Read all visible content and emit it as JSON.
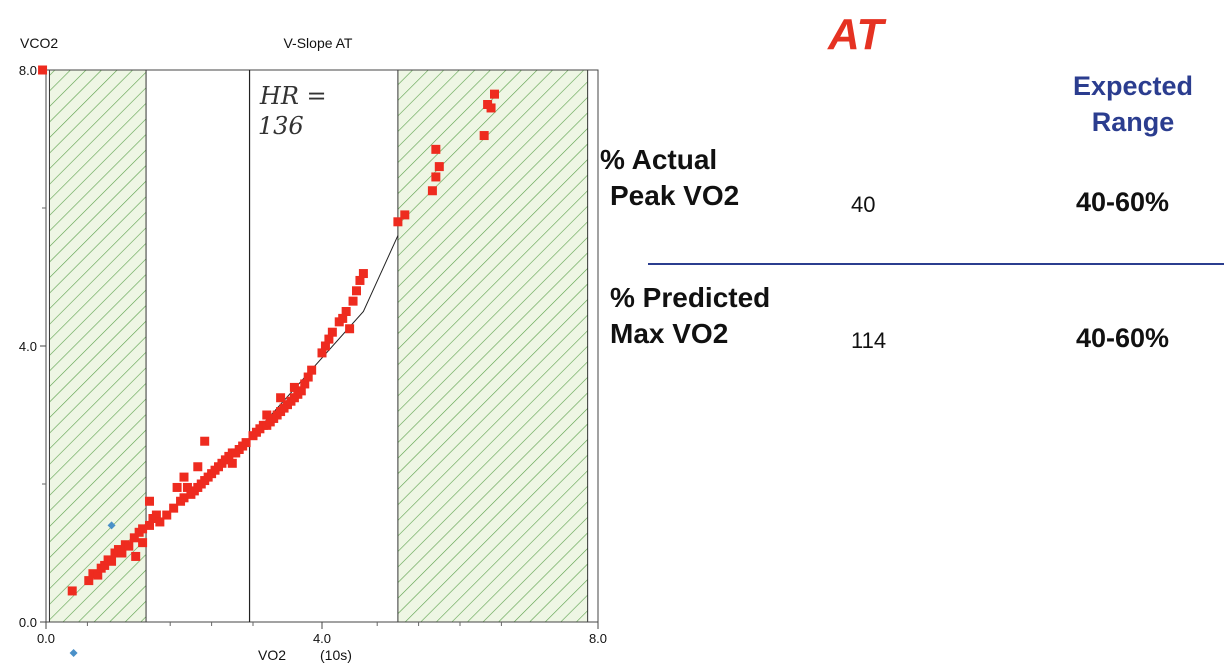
{
  "chart_data": {
    "type": "scatter",
    "title": "V-Slope AT",
    "ylabel": "VCO2",
    "xlabel": "VO2",
    "xlabel_suffix": "(10s)",
    "xlim": [
      0,
      8
    ],
    "ylim": [
      0,
      8
    ],
    "x_ticks": [
      {
        "value": 0,
        "label": "0.0"
      },
      {
        "value": 4,
        "label": "4.0"
      },
      {
        "value": 8,
        "label": "8.0"
      }
    ],
    "y_ticks": [
      {
        "value": 0,
        "label": "0.0"
      },
      {
        "value": 4,
        "label": "4.0"
      },
      {
        "value": 8,
        "label": "8.0"
      }
    ],
    "x_minor_ticks": [
      0.6,
      1.8,
      2.4,
      3.0,
      4.8,
      5.4,
      6.0,
      6.6
    ],
    "y_minor_ticks": [
      2.0,
      6.0
    ],
    "shaded_regions": [
      {
        "x_start": 0.05,
        "x_end": 1.45
      },
      {
        "x_start": 5.1,
        "x_end": 7.85
      }
    ],
    "at_line_x": 2.95,
    "fit_line": [
      {
        "x": 2.95,
        "y": 2.65
      },
      {
        "x": 4.6,
        "y": 4.5
      },
      {
        "x": 5.1,
        "y": 5.6
      }
    ],
    "annotation": {
      "line1": "HR =",
      "line2": "136",
      "x": 3.1,
      "y": 7.1
    },
    "series": [
      {
        "name": "VCO2",
        "color": "#ee2b1f",
        "points": [
          [
            0.38,
            0.45
          ],
          [
            0.62,
            0.6
          ],
          [
            0.68,
            0.7
          ],
          [
            0.75,
            0.68
          ],
          [
            0.8,
            0.78
          ],
          [
            0.85,
            0.82
          ],
          [
            0.9,
            0.9
          ],
          [
            0.95,
            0.88
          ],
          [
            1.0,
            1.0
          ],
          [
            1.05,
            1.05
          ],
          [
            1.1,
            1.0
          ],
          [
            1.15,
            1.12
          ],
          [
            1.2,
            1.1
          ],
          [
            1.28,
            1.22
          ],
          [
            1.35,
            1.3
          ],
          [
            1.4,
            1.35
          ],
          [
            1.5,
            1.4
          ],
          [
            1.55,
            1.5
          ],
          [
            1.6,
            1.55
          ],
          [
            1.5,
            1.75
          ],
          [
            1.65,
            1.45
          ],
          [
            1.3,
            0.95
          ],
          [
            1.4,
            1.15
          ],
          [
            1.75,
            1.55
          ],
          [
            1.85,
            1.65
          ],
          [
            1.95,
            1.75
          ],
          [
            2.0,
            1.8
          ],
          [
            2.05,
            1.95
          ],
          [
            1.9,
            1.95
          ],
          [
            2.1,
            1.85
          ],
          [
            2.15,
            1.9
          ],
          [
            2.2,
            1.95
          ],
          [
            2.25,
            2.0
          ],
          [
            2.3,
            2.05
          ],
          [
            2.35,
            2.1
          ],
          [
            2.4,
            2.15
          ],
          [
            2.45,
            2.2
          ],
          [
            2.5,
            2.25
          ],
          [
            2.55,
            2.3
          ],
          [
            2.6,
            2.35
          ],
          [
            2.65,
            2.4
          ],
          [
            2.7,
            2.45
          ],
          [
            2.75,
            2.45
          ],
          [
            2.8,
            2.5
          ],
          [
            2.85,
            2.55
          ],
          [
            2.9,
            2.6
          ],
          [
            2.3,
            2.62
          ],
          [
            2.2,
            2.25
          ],
          [
            2.0,
            2.1
          ],
          [
            2.7,
            2.3
          ],
          [
            3.0,
            2.7
          ],
          [
            3.05,
            2.75
          ],
          [
            3.1,
            2.8
          ],
          [
            3.15,
            2.85
          ],
          [
            3.2,
            2.85
          ],
          [
            3.25,
            2.9
          ],
          [
            3.3,
            2.95
          ],
          [
            3.35,
            3.0
          ],
          [
            3.4,
            3.05
          ],
          [
            3.45,
            3.1
          ],
          [
            3.5,
            3.15
          ],
          [
            3.55,
            3.2
          ],
          [
            3.6,
            3.25
          ],
          [
            3.65,
            3.3
          ],
          [
            3.7,
            3.35
          ],
          [
            3.75,
            3.45
          ],
          [
            3.8,
            3.55
          ],
          [
            3.85,
            3.65
          ],
          [
            3.2,
            3.0
          ],
          [
            3.4,
            3.25
          ],
          [
            3.6,
            3.4
          ],
          [
            4.0,
            3.9
          ],
          [
            4.05,
            4.0
          ],
          [
            4.1,
            4.1
          ],
          [
            4.15,
            4.2
          ],
          [
            4.25,
            4.35
          ],
          [
            4.35,
            4.5
          ],
          [
            4.45,
            4.65
          ],
          [
            4.5,
            4.8
          ],
          [
            4.55,
            4.95
          ],
          [
            4.6,
            5.05
          ],
          [
            4.3,
            4.4
          ],
          [
            4.4,
            4.25
          ],
          [
            5.1,
            5.8
          ],
          [
            5.2,
            5.9
          ],
          [
            5.6,
            6.25
          ],
          [
            5.65,
            6.45
          ],
          [
            5.7,
            6.6
          ],
          [
            5.65,
            6.85
          ],
          [
            6.35,
            7.05
          ],
          [
            6.4,
            7.5
          ],
          [
            6.5,
            7.65
          ],
          [
            6.45,
            7.45
          ],
          [
            -0.05,
            8.0
          ]
        ]
      },
      {
        "name": "markers",
        "color": "#4a90c8",
        "points": [
          [
            0.95,
            1.4
          ],
          [
            0.4,
            -0.45
          ]
        ]
      }
    ]
  },
  "panel": {
    "heading": "AT",
    "expected_line1": "Expected",
    "expected_line2": "Range",
    "rows": [
      {
        "label_line1": "% Actual",
        "label_line2": "Peak VO2",
        "value": "40",
        "range": "40-60%"
      },
      {
        "label_line1": "% Predicted",
        "label_line2": "Max VO2",
        "value": "114",
        "range": "40-60%"
      }
    ]
  }
}
